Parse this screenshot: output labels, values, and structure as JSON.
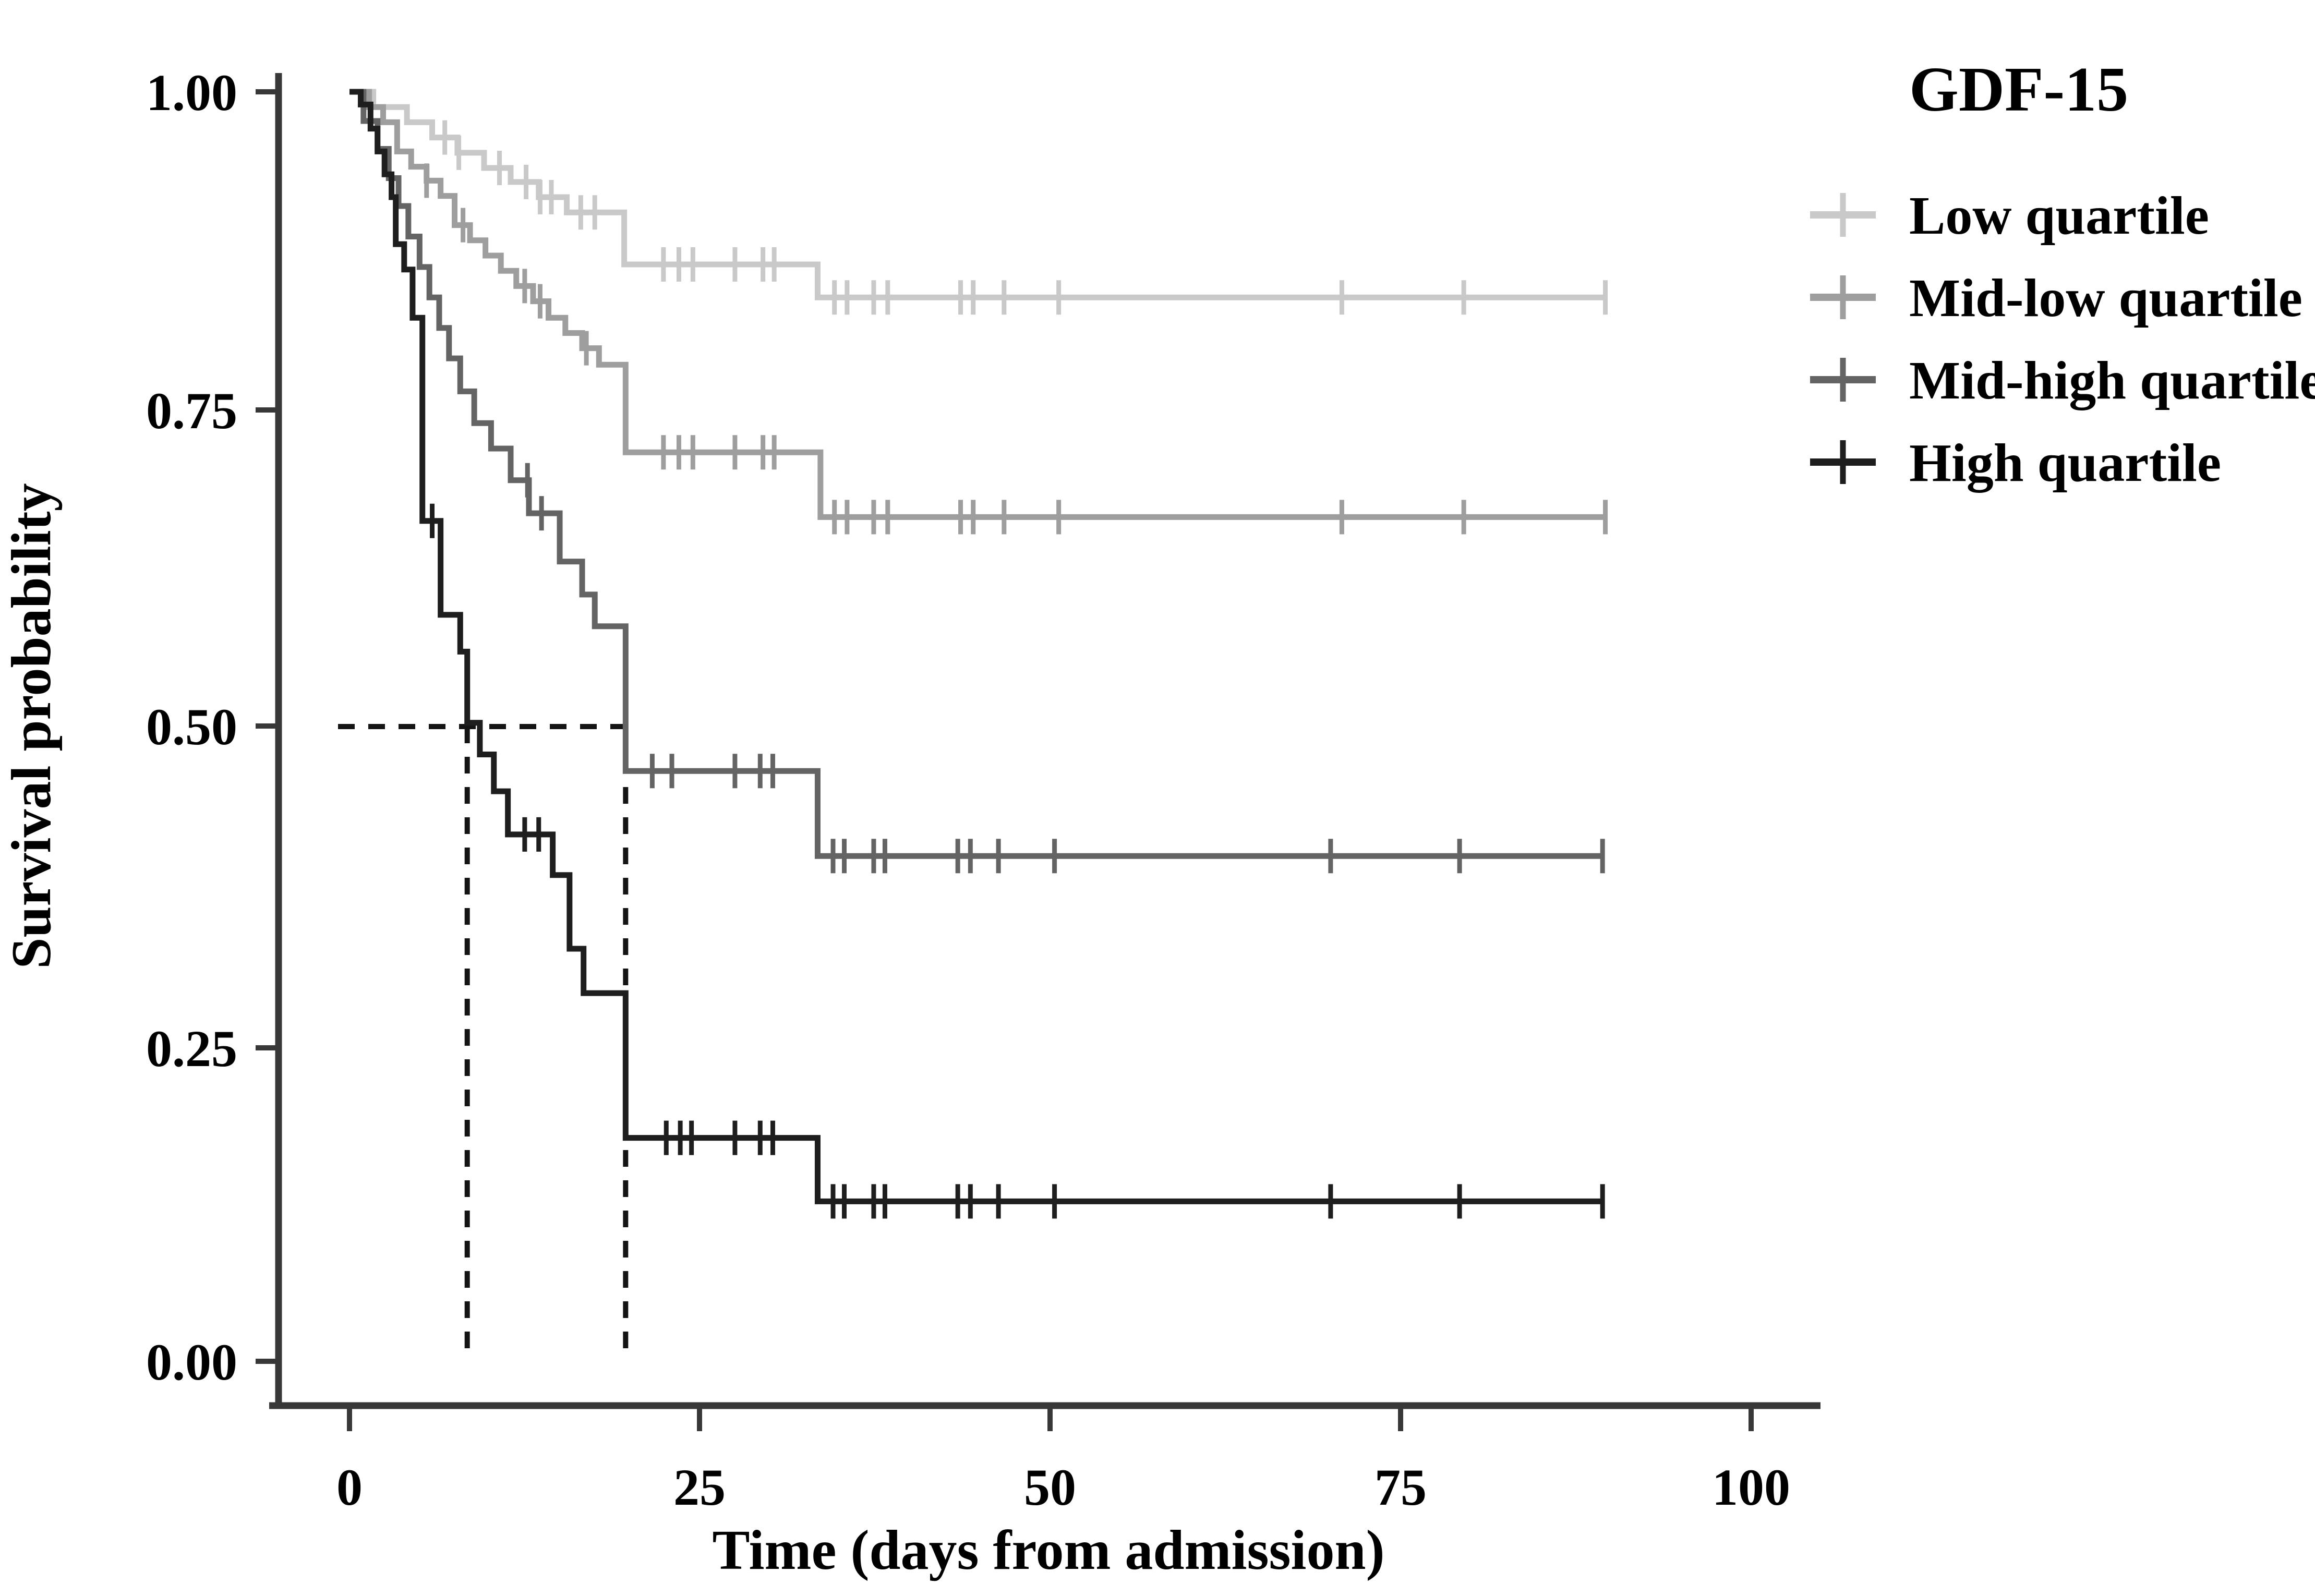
{
  "chart_data": {
    "type": "line",
    "subtype": "kaplan-meier-step",
    "title": "",
    "xlabel": "Time (days from admission)",
    "ylabel": "Survival probability",
    "x_ticks": [
      0,
      25,
      50,
      75,
      100
    ],
    "x_tick_labels": [
      "0",
      "25",
      "50",
      "75",
      "100"
    ],
    "y_ticks": [
      1.0,
      0.75,
      0.5,
      0.25,
      0.0
    ],
    "y_tick_labels": [
      "1.00",
      "0.75",
      "0.50",
      "0.25",
      "0.00"
    ],
    "xlim": [
      -5.5,
      105
    ],
    "ylim": [
      0.0,
      1.0
    ],
    "grid": false,
    "legend_position": "top-right",
    "legend_title": "GDF-15",
    "axis_color": "#383838",
    "guide_color": "#141414",
    "medians": {
      "survival": 0.5,
      "times": [
        8.4,
        19.7
      ],
      "style": "dashed"
    },
    "series": [
      {
        "name": "Low quartile",
        "color": "#c9c9c9",
        "end": 89.6,
        "steps": [
          [
            0,
            1.0
          ],
          [
            1.7,
            0.988
          ],
          [
            4.1,
            0.976
          ],
          [
            5.9,
            0.964
          ],
          [
            7.7,
            0.952
          ],
          [
            9.6,
            0.94
          ],
          [
            11.5,
            0.929
          ],
          [
            13.5,
            0.917
          ],
          [
            15.5,
            0.905
          ],
          [
            19.6,
            0.864
          ],
          [
            33.4,
            0.838
          ]
        ],
        "censors": [
          6.8,
          7.8,
          10.7,
          12.6,
          13.6,
          14.4,
          16.5,
          17.5,
          22.4,
          23.5,
          24.5,
          27.5,
          29.5,
          30.3,
          34.6,
          35.5,
          37.4,
          38.4,
          43.6,
          44.5,
          46.7,
          50.6,
          70.8,
          79.5,
          89.6
        ]
      },
      {
        "name": "Mid-low quartile",
        "color": "#9e9e9e",
        "end": 89.6,
        "steps": [
          [
            0,
            1.0
          ],
          [
            1.4,
            0.988
          ],
          [
            2.4,
            0.976
          ],
          [
            3.4,
            0.953
          ],
          [
            4.4,
            0.941
          ],
          [
            5.5,
            0.93
          ],
          [
            6.5,
            0.918
          ],
          [
            7.5,
            0.895
          ],
          [
            8.6,
            0.883
          ],
          [
            9.7,
            0.871
          ],
          [
            10.8,
            0.859
          ],
          [
            11.9,
            0.847
          ],
          [
            13.1,
            0.835
          ],
          [
            14.2,
            0.822
          ],
          [
            15.4,
            0.81
          ],
          [
            16.6,
            0.798
          ],
          [
            17.8,
            0.785
          ],
          [
            19.7,
            0.716
          ],
          [
            33.6,
            0.665
          ]
        ],
        "censors": [
          5.5,
          8.1,
          12.5,
          13.6,
          16.9,
          22.4,
          23.5,
          24.5,
          27.5,
          29.5,
          30.3,
          34.6,
          35.5,
          37.4,
          38.4,
          43.6,
          44.5,
          46.7,
          50.6,
          70.8,
          79.5,
          89.6
        ]
      },
      {
        "name": "Mid-high quartile",
        "color": "#646464",
        "end": 89.4,
        "steps": [
          [
            0,
            1.0
          ],
          [
            1.0,
            0.977
          ],
          [
            2.0,
            0.955
          ],
          [
            2.8,
            0.932
          ],
          [
            3.5,
            0.91
          ],
          [
            4.2,
            0.886
          ],
          [
            5.0,
            0.862
          ],
          [
            5.7,
            0.838
          ],
          [
            6.4,
            0.814
          ],
          [
            7.1,
            0.79
          ],
          [
            7.9,
            0.764
          ],
          [
            8.9,
            0.739
          ],
          [
            10.1,
            0.719
          ],
          [
            11.5,
            0.694
          ],
          [
            12.8,
            0.668
          ],
          [
            15.0,
            0.63
          ],
          [
            16.6,
            0.604
          ],
          [
            17.5,
            0.579
          ],
          [
            19.7,
            0.465
          ],
          [
            33.4,
            0.398
          ]
        ],
        "censors": [
          12.7,
          13.7,
          21.6,
          23.0,
          27.5,
          29.3,
          30.2,
          34.5,
          35.3,
          37.4,
          38.2,
          43.4,
          44.3,
          46.3,
          50.3,
          70.0,
          79.2,
          89.4
        ]
      },
      {
        "name": "High quartile",
        "color": "#1e1e1e",
        "end": 89.4,
        "steps": [
          [
            0,
            1.0
          ],
          [
            0.8,
            0.99
          ],
          [
            1.5,
            0.971
          ],
          [
            2.0,
            0.953
          ],
          [
            2.5,
            0.935
          ],
          [
            3.0,
            0.917
          ],
          [
            3.3,
            0.88
          ],
          [
            3.9,
            0.86
          ],
          [
            4.5,
            0.822
          ],
          [
            5.2,
            0.662
          ],
          [
            6.5,
            0.588
          ],
          [
            7.9,
            0.559
          ],
          [
            8.4,
            0.503
          ],
          [
            9.3,
            0.478
          ],
          [
            10.3,
            0.449
          ],
          [
            11.3,
            0.415
          ],
          [
            14.5,
            0.383
          ],
          [
            15.7,
            0.325
          ],
          [
            16.7,
            0.29
          ],
          [
            19.7,
            0.176
          ],
          [
            33.4,
            0.126
          ]
        ],
        "censors": [
          5.9,
          12.5,
          13.5,
          22.6,
          23.6,
          24.4,
          27.5,
          29.3,
          30.2,
          34.5,
          35.3,
          37.4,
          38.2,
          43.4,
          44.3,
          46.3,
          50.3,
          70.0,
          79.2,
          89.4
        ]
      }
    ]
  }
}
